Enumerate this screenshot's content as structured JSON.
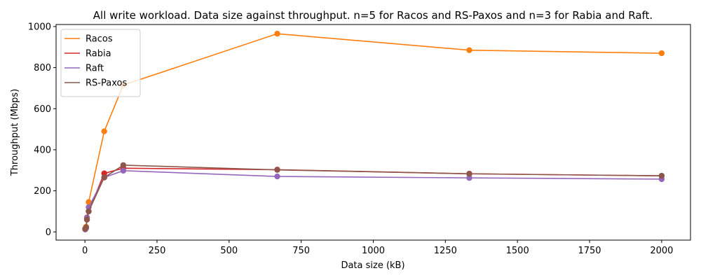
{
  "chart_data": {
    "type": "line",
    "title": "All write workload. Data size against throughput. n=5 for Racos and RS-Paxos and n=3 for Rabia and Raft.",
    "xlabel": "Data size (kB)",
    "ylabel": "Throughput (Mbps)",
    "xlim": [
      -100,
      2100
    ],
    "ylim": [
      -40,
      1010
    ],
    "xticks": [
      0,
      250,
      500,
      750,
      1000,
      1250,
      1500,
      1750,
      2000
    ],
    "yticks": [
      0,
      200,
      400,
      600,
      800,
      1000
    ],
    "grid": false,
    "legend_position": "top-left",
    "series": [
      {
        "name": "Racos",
        "color": "#ff7f0e",
        "x": [
          1,
          4,
          7,
          13,
          67,
          133,
          667,
          1333,
          2000
        ],
        "y": [
          15,
          25,
          70,
          145,
          490,
          715,
          965,
          885,
          870
        ]
      },
      {
        "name": "Rabia",
        "color": "#d62728",
        "x": [
          1,
          4,
          7,
          13,
          67,
          133,
          667,
          1333,
          2000
        ],
        "y": [
          15,
          20,
          60,
          100,
          285,
          310,
          303,
          283,
          273
        ]
      },
      {
        "name": "Raft",
        "color": "#9467bd",
        "x": [
          1,
          4,
          7,
          13,
          67,
          133,
          667,
          1333,
          2000
        ],
        "y": [
          12,
          18,
          70,
          120,
          265,
          298,
          270,
          263,
          257
        ]
      },
      {
        "name": "RS-Paxos",
        "color": "#8c564b",
        "x": [
          1,
          4,
          7,
          13,
          67,
          133,
          667,
          1333,
          2000
        ],
        "y": [
          15,
          22,
          60,
          100,
          265,
          325,
          302,
          283,
          273
        ]
      }
    ]
  }
}
